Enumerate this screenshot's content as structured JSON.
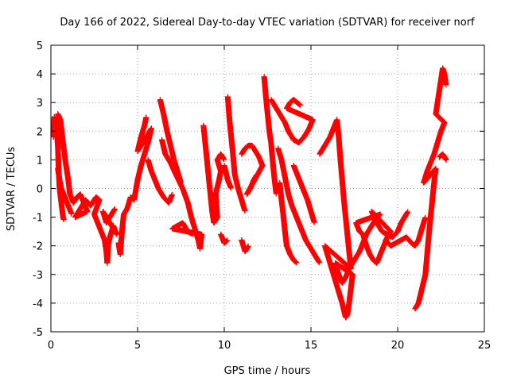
{
  "chart_data": {
    "type": "scatter",
    "title": "Day 166 of 2022, Sidereal Day-to-day VTEC variation (SDTVAR) for receiver norf",
    "xlabel": "GPS time / hours",
    "ylabel": "SDTVAR / TECUs",
    "xlim": [
      0,
      25
    ],
    "ylim": [
      -5,
      5
    ],
    "xticks": [
      0,
      5,
      10,
      15,
      20,
      25
    ],
    "yticks": [
      -5,
      -4,
      -3,
      -2,
      -1,
      0,
      1,
      2,
      3,
      4,
      5
    ],
    "grid": true,
    "marker": "+",
    "series": [
      {
        "name": "SDTVAR",
        "color": "#ff0000",
        "points": [
          [
            0.1,
            0.7
          ],
          [
            0.15,
            1.8
          ],
          [
            0.2,
            2.5
          ],
          [
            0.3,
            2.2
          ],
          [
            0.4,
            1.5
          ],
          [
            0.45,
            0.6
          ],
          [
            0.5,
            0.0
          ],
          [
            0.6,
            -0.5
          ],
          [
            0.7,
            -1.0
          ],
          [
            0.75,
            -1.1
          ],
          [
            0.4,
            0.7
          ],
          [
            0.5,
            0.3
          ],
          [
            0.6,
            0.0
          ],
          [
            0.8,
            -0.3
          ],
          [
            1.0,
            -0.6
          ],
          [
            1.2,
            -0.9
          ],
          [
            0.4,
            2.6
          ],
          [
            0.55,
            2.4
          ],
          [
            0.7,
            1.6
          ],
          [
            0.85,
            0.9
          ],
          [
            1.0,
            0.3
          ],
          [
            1.1,
            -0.2
          ],
          [
            1.3,
            -0.5
          ],
          [
            1.5,
            -0.3
          ],
          [
            1.7,
            -0.2
          ],
          [
            1.9,
            -0.5
          ],
          [
            2.1,
            -0.8
          ],
          [
            1.4,
            -1.0
          ],
          [
            1.6,
            -0.8
          ],
          [
            2.0,
            -0.4
          ],
          [
            2.3,
            -0.6
          ],
          [
            2.6,
            -0.3
          ],
          [
            2.8,
            -0.4
          ],
          [
            2.5,
            -0.9
          ],
          [
            2.7,
            -1.2
          ],
          [
            2.9,
            -1.5
          ],
          [
            3.1,
            -1.8
          ],
          [
            3.2,
            -2.2
          ],
          [
            3.25,
            -2.6
          ],
          [
            3.3,
            -2.0
          ],
          [
            3.4,
            -1.7
          ],
          [
            3.6,
            -1.3
          ],
          [
            3.8,
            -1.6
          ],
          [
            3.0,
            -0.8
          ],
          [
            3.2,
            -1.2
          ],
          [
            3.5,
            -0.9
          ],
          [
            3.7,
            -0.7
          ],
          [
            3.9,
            -1.9
          ],
          [
            4.0,
            -2.3
          ],
          [
            4.1,
            -1.5
          ],
          [
            4.2,
            -0.9
          ],
          [
            4.4,
            -0.7
          ],
          [
            4.6,
            -0.3
          ],
          [
            4.8,
            -0.4
          ],
          [
            5.0,
            0.3
          ],
          [
            5.2,
            0.8
          ],
          [
            5.4,
            1.2
          ],
          [
            5.6,
            1.6
          ],
          [
            5.8,
            2.1
          ],
          [
            5.0,
            1.3
          ],
          [
            5.2,
            1.8
          ],
          [
            5.4,
            2.2
          ],
          [
            5.5,
            2.5
          ],
          [
            5.6,
            1.0
          ],
          [
            5.8,
            0.6
          ],
          [
            6.0,
            0.3
          ],
          [
            6.2,
            0.0
          ],
          [
            6.5,
            -0.3
          ],
          [
            6.8,
            -0.5
          ],
          [
            7.0,
            -0.2
          ],
          [
            6.3,
            3.1
          ],
          [
            6.5,
            2.6
          ],
          [
            6.7,
            2.0
          ],
          [
            6.9,
            1.5
          ],
          [
            7.1,
            1.0
          ],
          [
            7.3,
            0.6
          ],
          [
            7.5,
            0.2
          ],
          [
            6.4,
            1.7
          ],
          [
            6.6,
            1.2
          ],
          [
            6.9,
            0.9
          ],
          [
            7.2,
            0.5
          ],
          [
            7.6,
            0.0
          ],
          [
            7.9,
            -0.5
          ],
          [
            8.1,
            -1.0
          ],
          [
            8.3,
            -1.4
          ],
          [
            8.5,
            -1.8
          ],
          [
            8.6,
            -2.1
          ],
          [
            8.7,
            -1.6
          ],
          [
            7.0,
            -1.4
          ],
          [
            7.3,
            -1.3
          ],
          [
            7.6,
            -1.2
          ],
          [
            7.9,
            -1.5
          ],
          [
            8.2,
            -1.6
          ],
          [
            8.8,
            2.2
          ],
          [
            8.9,
            1.6
          ],
          [
            9.0,
            1.0
          ],
          [
            9.1,
            0.4
          ],
          [
            9.2,
            -0.2
          ],
          [
            9.3,
            -0.8
          ],
          [
            9.4,
            -1.2
          ],
          [
            9.6,
            -1.0
          ],
          [
            9.5,
            -0.2
          ],
          [
            9.7,
            0.3
          ],
          [
            9.8,
            0.6
          ],
          [
            9.6,
            1.0
          ],
          [
            9.8,
            1.2
          ],
          [
            10.0,
            1.0
          ],
          [
            9.8,
            -1.6
          ],
          [
            10.0,
            -1.9
          ],
          [
            10.2,
            -1.8
          ],
          [
            10.0,
            0.8
          ],
          [
            10.2,
            0.3
          ],
          [
            10.4,
            0.0
          ],
          [
            10.2,
            3.2
          ],
          [
            10.3,
            2.4
          ],
          [
            10.4,
            1.8
          ],
          [
            10.5,
            1.2
          ],
          [
            10.6,
            0.5
          ],
          [
            10.8,
            0.0
          ],
          [
            11.0,
            -0.4
          ],
          [
            11.2,
            -0.8
          ],
          [
            11.0,
            1.2
          ],
          [
            11.2,
            1.4
          ],
          [
            11.4,
            1.5
          ],
          [
            11.6,
            1.5
          ],
          [
            11.8,
            1.3
          ],
          [
            12.0,
            1.1
          ],
          [
            12.2,
            0.8
          ],
          [
            11.3,
            -0.2
          ],
          [
            11.5,
            0.0
          ],
          [
            11.7,
            0.3
          ],
          [
            11.9,
            0.5
          ],
          [
            11.0,
            -1.8
          ],
          [
            11.2,
            -2.2
          ],
          [
            11.4,
            -2.0
          ],
          [
            12.3,
            3.9
          ],
          [
            12.4,
            3.2
          ],
          [
            12.5,
            2.6
          ],
          [
            12.6,
            2.0
          ],
          [
            12.7,
            1.6
          ],
          [
            12.8,
            0.9
          ],
          [
            12.9,
            0.3
          ],
          [
            13.0,
            -0.2
          ],
          [
            12.7,
            3.1
          ],
          [
            12.9,
            2.9
          ],
          [
            13.1,
            2.7
          ],
          [
            13.3,
            2.5
          ],
          [
            13.5,
            2.3
          ],
          [
            13.7,
            2.0
          ],
          [
            14.0,
            1.7
          ],
          [
            14.3,
            1.6
          ],
          [
            14.6,
            1.8
          ],
          [
            14.9,
            2.1
          ],
          [
            15.1,
            2.4
          ],
          [
            13.6,
            2.8
          ],
          [
            13.8,
            3.0
          ],
          [
            14.0,
            3.1
          ],
          [
            14.2,
            3.0
          ],
          [
            14.4,
            2.9
          ],
          [
            13.2,
            0.2
          ],
          [
            13.3,
            -0.4
          ],
          [
            13.4,
            -0.9
          ],
          [
            13.5,
            -1.5
          ],
          [
            13.6,
            -2.0
          ],
          [
            13.8,
            -2.3
          ],
          [
            14.0,
            -2.5
          ],
          [
            14.2,
            -2.6
          ],
          [
            13.1,
            1.4
          ],
          [
            13.3,
            1.0
          ],
          [
            13.5,
            0.4
          ],
          [
            13.7,
            -0.2
          ],
          [
            13.9,
            -0.6
          ],
          [
            14.1,
            -0.9
          ],
          [
            14.3,
            -1.2
          ],
          [
            14.5,
            -1.5
          ],
          [
            14.7,
            -1.8
          ],
          [
            14.9,
            -2.0
          ],
          [
            15.1,
            -2.2
          ],
          [
            15.3,
            -2.4
          ],
          [
            15.5,
            -2.6
          ],
          [
            14.0,
            0.8
          ],
          [
            14.2,
            0.5
          ],
          [
            14.4,
            0.2
          ],
          [
            14.6,
            -0.1
          ],
          [
            14.8,
            -0.4
          ],
          [
            15.0,
            -0.8
          ],
          [
            15.2,
            -1.2
          ],
          [
            15.5,
            1.2
          ],
          [
            15.7,
            1.4
          ],
          [
            15.9,
            1.6
          ],
          [
            16.1,
            1.8
          ],
          [
            16.3,
            2.1
          ],
          [
            16.5,
            2.4
          ],
          [
            16.6,
            1.8
          ],
          [
            16.7,
            1.0
          ],
          [
            16.8,
            0.3
          ],
          [
            16.9,
            -0.4
          ],
          [
            17.0,
            -1.0
          ],
          [
            17.1,
            -1.6
          ],
          [
            17.2,
            -2.2
          ],
          [
            17.3,
            -2.8
          ],
          [
            15.8,
            -2.0
          ],
          [
            16.0,
            -2.4
          ],
          [
            16.2,
            -2.8
          ],
          [
            16.4,
            -3.2
          ],
          [
            16.6,
            -3.6
          ],
          [
            16.8,
            -4.0
          ],
          [
            17.0,
            -4.5
          ],
          [
            17.1,
            -4.4
          ],
          [
            17.2,
            -4.0
          ],
          [
            17.3,
            -3.5
          ],
          [
            17.4,
            -3.0
          ],
          [
            16.4,
            -2.6
          ],
          [
            16.6,
            -3.0
          ],
          [
            16.8,
            -3.3
          ],
          [
            17.0,
            -3.1
          ],
          [
            17.2,
            -2.8
          ],
          [
            17.4,
            -2.6
          ],
          [
            17.6,
            -2.4
          ],
          [
            17.8,
            -2.2
          ],
          [
            18.0,
            -1.9
          ],
          [
            18.2,
            -1.6
          ],
          [
            18.4,
            -1.4
          ],
          [
            18.6,
            -1.2
          ],
          [
            18.8,
            -1.0
          ],
          [
            19.0,
            -0.9
          ],
          [
            17.6,
            -1.2
          ],
          [
            17.8,
            -1.5
          ],
          [
            18.0,
            -1.6
          ],
          [
            18.2,
            -2.0
          ],
          [
            18.4,
            -2.3
          ],
          [
            18.6,
            -2.5
          ],
          [
            18.8,
            -2.6
          ],
          [
            19.0,
            -2.3
          ],
          [
            19.2,
            -2.0
          ],
          [
            19.4,
            -1.7
          ],
          [
            19.6,
            -1.5
          ],
          [
            18.5,
            -0.8
          ],
          [
            18.8,
            -1.2
          ],
          [
            19.1,
            -1.5
          ],
          [
            19.4,
            -1.6
          ],
          [
            19.7,
            -1.7
          ],
          [
            20.0,
            -1.5
          ],
          [
            20.2,
            -1.2
          ],
          [
            20.4,
            -1.0
          ],
          [
            20.6,
            -0.8
          ],
          [
            19.3,
            -1.8
          ],
          [
            19.6,
            -2.0
          ],
          [
            19.9,
            -1.9
          ],
          [
            20.2,
            -1.8
          ],
          [
            20.5,
            -1.7
          ],
          [
            20.8,
            -1.9
          ],
          [
            21.0,
            -2.0
          ],
          [
            21.2,
            -1.8
          ],
          [
            21.4,
            -1.4
          ],
          [
            21.6,
            -1.0
          ],
          [
            21.0,
            -4.2
          ],
          [
            21.2,
            -4.0
          ],
          [
            21.4,
            -3.5
          ],
          [
            21.6,
            -3.0
          ],
          [
            21.7,
            -2.3
          ],
          [
            21.8,
            -1.6
          ],
          [
            21.9,
            -1.0
          ],
          [
            22.0,
            -0.4
          ],
          [
            22.1,
            0.2
          ],
          [
            22.2,
            0.7
          ],
          [
            21.5,
            0.2
          ],
          [
            21.7,
            0.6
          ],
          [
            21.9,
            0.9
          ],
          [
            22.1,
            1.2
          ],
          [
            22.3,
            1.6
          ],
          [
            22.5,
            2.0
          ],
          [
            22.7,
            2.3
          ],
          [
            22.2,
            2.6
          ],
          [
            22.3,
            3.0
          ],
          [
            22.4,
            3.4
          ],
          [
            22.5,
            3.8
          ],
          [
            22.6,
            4.2
          ],
          [
            22.7,
            4.0
          ],
          [
            22.8,
            3.6
          ],
          [
            22.4,
            1.1
          ],
          [
            22.6,
            1.2
          ],
          [
            22.8,
            1.0
          ]
        ]
      }
    ]
  }
}
